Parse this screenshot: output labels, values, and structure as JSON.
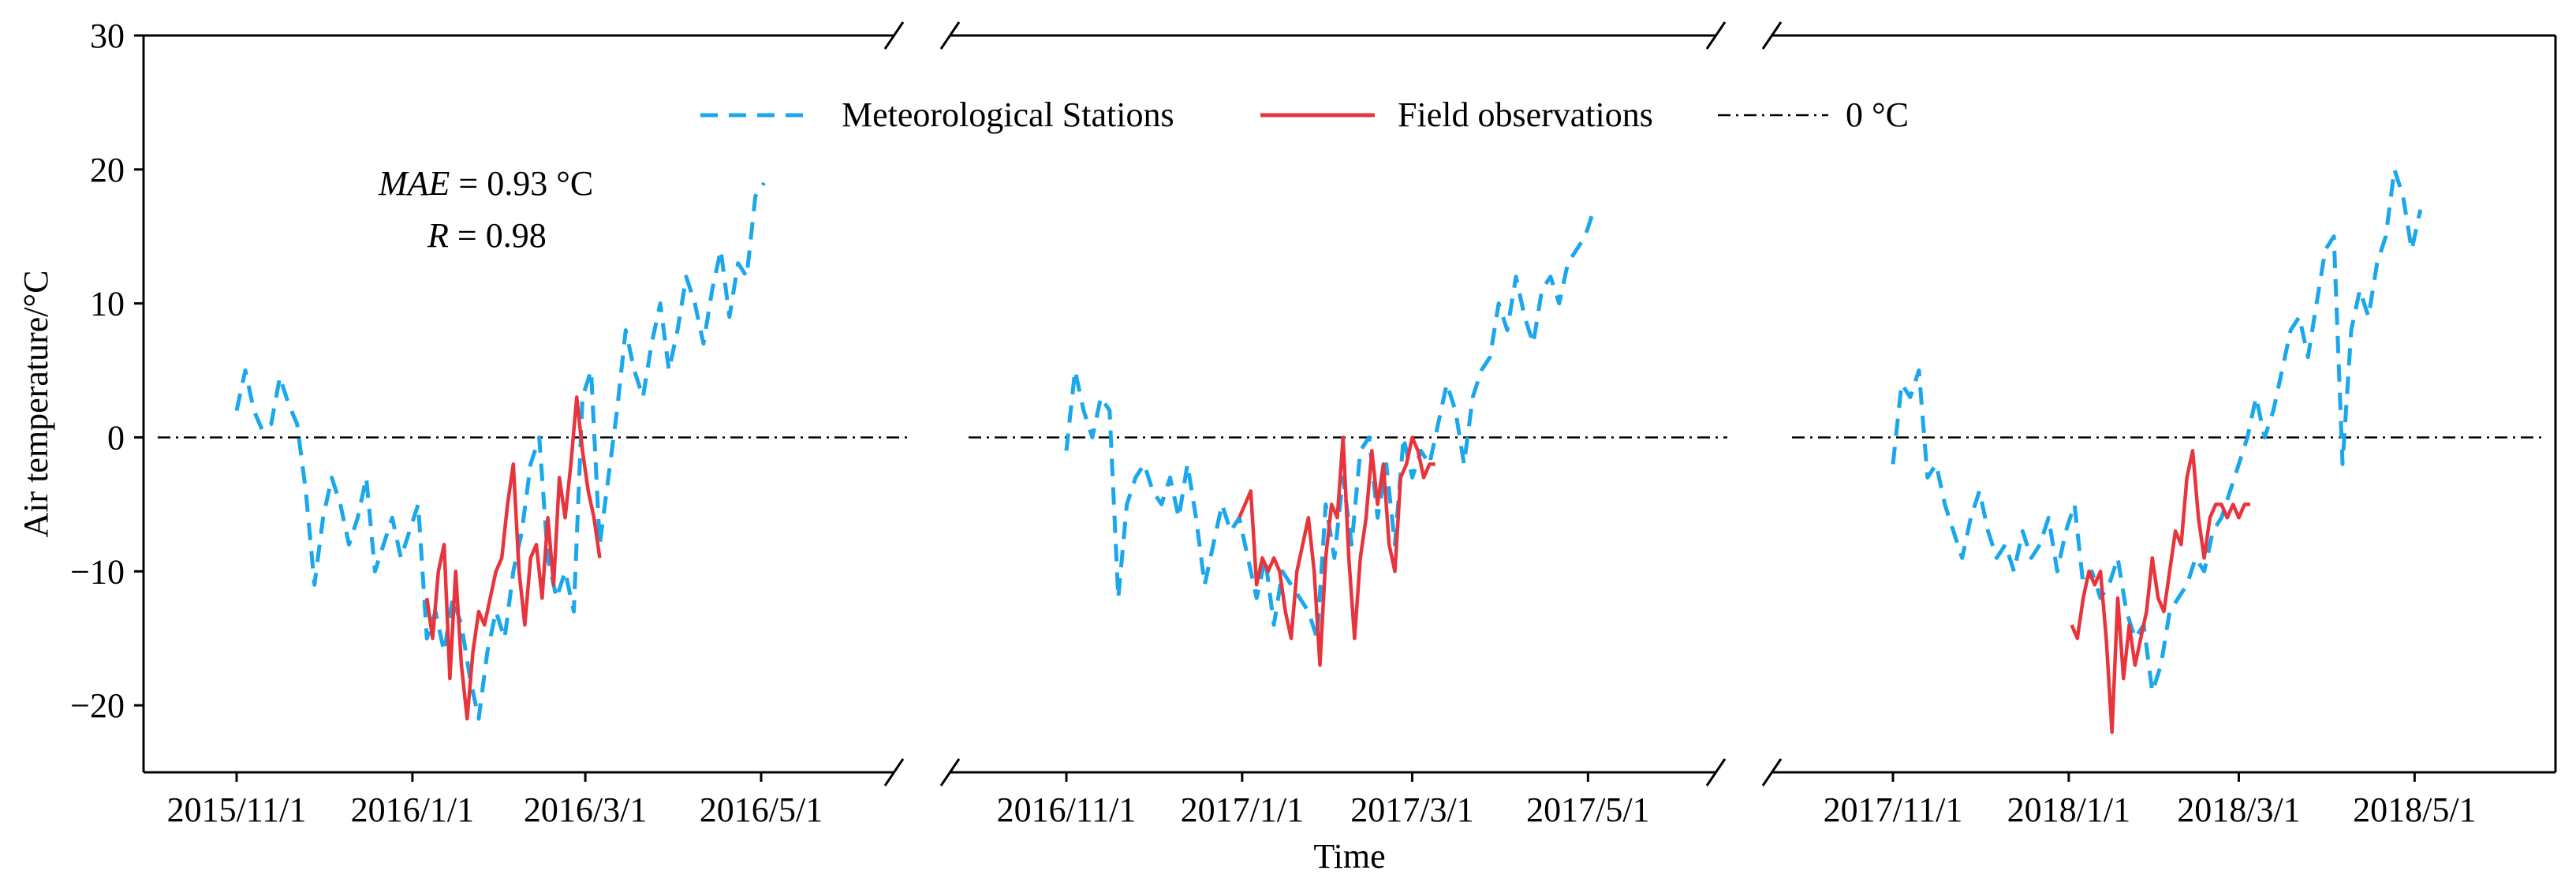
{
  "chart_data": {
    "type": "line",
    "ylabel": "Air temperature/°C",
    "xlabel": "Time",
    "ylim": [
      -25,
      30
    ],
    "yticks": [
      -20,
      -10,
      0,
      10,
      20,
      30
    ],
    "ytick_labels": [
      "−20",
      "−10",
      "0",
      "10",
      "20",
      "30"
    ],
    "legend": {
      "position": "top-center",
      "entries": [
        "Meteorological Stations",
        "Field observations",
        "0 °C"
      ]
    },
    "colors": {
      "met": "#1aa7ec",
      "field": "#e8343c",
      "zero": "#000000"
    },
    "annotation": {
      "mae_label": "MAE",
      "mae_value": " = 0.93 °C",
      "r_label": "R",
      "r_value": " = 0.98"
    },
    "panels": [
      {
        "xticks": [
          0,
          61,
          121,
          182
        ],
        "xtick_labels": [
          "2015/11/1",
          "2016/1/1",
          "2016/3/1",
          "2016/5/1"
        ],
        "xlim": [
          -31,
          230
        ],
        "series": [
          {
            "name": "Meteorological Stations",
            "x": [
              0,
              3,
              6,
              9,
              12,
              15,
              18,
              21,
              24,
              27,
              30,
              33,
              36,
              39,
              42,
              45,
              48,
              51,
              54,
              57,
              60,
              63,
              66,
              69,
              72,
              75,
              78,
              81,
              84,
              87,
              90,
              93,
              96,
              99,
              102,
              105,
              108,
              111,
              114,
              117,
              120,
              123,
              126,
              129,
              132,
              135,
              138,
              141,
              144,
              147,
              150,
              153,
              156,
              159,
              162,
              165,
              168,
              171,
              174,
              177,
              180,
              183
            ],
            "y": [
              2,
              5,
              2,
              0.5,
              1,
              4.5,
              2.5,
              1,
              -4,
              -11,
              -6,
              -3,
              -5,
              -8,
              -6,
              -3,
              -10,
              -8,
              -6,
              -9,
              -7,
              -5,
              -15,
              -13,
              -16,
              -12,
              -14,
              -18,
              -21,
              -16,
              -13,
              -15,
              -10,
              -7,
              -2,
              0,
              -9,
              -12,
              -10,
              -13,
              3,
              5,
              -8,
              -3,
              2,
              8,
              5,
              3,
              7,
              10,
              5,
              8,
              12,
              10,
              7,
              11,
              14,
              9,
              13,
              12,
              18,
              19
            ]
          },
          {
            "name": "Field observations",
            "x": [
              66,
              68,
              70,
              72,
              74,
              76,
              78,
              80,
              82,
              84,
              86,
              88,
              90,
              92,
              94,
              96,
              98,
              100,
              102,
              104,
              106,
              108,
              110,
              112,
              114,
              116,
              118,
              120,
              122,
              124,
              126
            ],
            "y": [
              -12,
              -15,
              -10,
              -8,
              -18,
              -10,
              -17,
              -21,
              -16,
              -13,
              -14,
              -12,
              -10,
              -9,
              -5,
              -2,
              -10,
              -14,
              -9,
              -8,
              -12,
              -6,
              -11,
              -3,
              -6,
              -2,
              3,
              -1,
              -4,
              -6,
              -9
            ]
          }
        ]
      },
      {
        "xticks": [
          0,
          61,
          120,
          181
        ],
        "xtick_labels": [
          "2016/11/1",
          "2017/1/1",
          "2017/3/1",
          "2017/5/1"
        ],
        "xlim": [
          -31,
          230
        ],
        "series": [
          {
            "name": "Meteorological Stations",
            "x": [
              0,
              3,
              6,
              9,
              12,
              15,
              18,
              21,
              24,
              27,
              30,
              33,
              36,
              39,
              42,
              45,
              48,
              51,
              54,
              57,
              60,
              63,
              66,
              69,
              72,
              75,
              78,
              81,
              84,
              87,
              90,
              93,
              96,
              99,
              102,
              105,
              108,
              111,
              114,
              117,
              120,
              123,
              126,
              129,
              132,
              135,
              138,
              141,
              144,
              147,
              150,
              153,
              156,
              159,
              162,
              165,
              168,
              171,
              174,
              177,
              180,
              183
            ],
            "y": [
              -1,
              5,
              2,
              0,
              3,
              2,
              -12,
              -5,
              -3,
              -2,
              -4,
              -5,
              -3,
              -6,
              -2,
              -6,
              -11,
              -8,
              -5,
              -7,
              -6,
              -9,
              -12,
              -9,
              -14,
              -10,
              -11,
              -12,
              -13,
              -15,
              -5,
              -9,
              -3,
              -8,
              -1,
              0,
              -6,
              -2,
              -8,
              0,
              -3,
              -1,
              -2,
              1,
              4,
              2,
              -2,
              3,
              5,
              6,
              10,
              8,
              12,
              9,
              7,
              11,
              12,
              10,
              13,
              14,
              15,
              17
            ]
          },
          {
            "name": "Field observations",
            "x": [
              60,
              62,
              64,
              66,
              68,
              70,
              72,
              74,
              76,
              78,
              80,
              82,
              84,
              86,
              88,
              90,
              92,
              94,
              96,
              98,
              100,
              102,
              104,
              106,
              108,
              110,
              112,
              114,
              116,
              118,
              120,
              122,
              124,
              126,
              128
            ],
            "y": [
              -6,
              -5,
              -4,
              -11,
              -9,
              -10,
              -9,
              -10,
              -13,
              -15,
              -10,
              -8,
              -6,
              -10,
              -17,
              -9,
              -5,
              -6,
              0,
              -9,
              -15,
              -9,
              -6,
              -1,
              -5,
              -2,
              -8,
              -10,
              -3,
              -2,
              0,
              -1,
              -3,
              -2,
              -2
            ]
          }
        ]
      },
      {
        "xticks": [
          0,
          61,
          120,
          181
        ],
        "xtick_labels": [
          "2017/11/1",
          "2018/1/1",
          "2018/3/1",
          "2018/5/1"
        ],
        "xlim": [
          -31,
          230
        ],
        "series": [
          {
            "name": "Meteorological Stations",
            "x": [
              0,
              3,
              6,
              9,
              12,
              15,
              18,
              21,
              24,
              27,
              30,
              33,
              36,
              39,
              42,
              45,
              48,
              51,
              54,
              57,
              60,
              63,
              66,
              69,
              72,
              75,
              78,
              81,
              84,
              87,
              90,
              93,
              96,
              99,
              102,
              105,
              108,
              111,
              114,
              117,
              120,
              123,
              126,
              129,
              132,
              135,
              138,
              141,
              144,
              147,
              150,
              153,
              156,
              159,
              162,
              165,
              168,
              171,
              174,
              177,
              180,
              183
            ],
            "y": [
              -2,
              4,
              3,
              5,
              -3,
              -2,
              -5,
              -7,
              -9,
              -6,
              -4,
              -7,
              -9,
              -8,
              -10,
              -7,
              -9,
              -8,
              -6,
              -10,
              -7,
              -5,
              -11,
              -10,
              -12,
              -11,
              -9,
              -13,
              -15,
              -14,
              -19,
              -17,
              -13,
              -12,
              -11,
              -9,
              -10,
              -7,
              -6,
              -4,
              -2,
              0,
              3,
              0,
              2,
              5,
              8,
              9,
              6,
              10,
              14,
              15,
              -2,
              8,
              11,
              9,
              13,
              15,
              20,
              18,
              14,
              17
            ]
          },
          {
            "name": "Field observations",
            "x": [
              62,
              64,
              66,
              68,
              70,
              72,
              74,
              76,
              78,
              80,
              82,
              84,
              86,
              88,
              90,
              92,
              94,
              96,
              98,
              100,
              102,
              104,
              106,
              108,
              110,
              112,
              114,
              116,
              118,
              120,
              122,
              124
            ],
            "y": [
              -14,
              -15,
              -12,
              -10,
              -11,
              -10,
              -15,
              -22,
              -12,
              -18,
              -14,
              -17,
              -15,
              -13,
              -9,
              -12,
              -13,
              -10,
              -7,
              -8,
              -3,
              -1,
              -6,
              -9,
              -6,
              -5,
              -5,
              -6,
              -5,
              -6,
              -5,
              -5
            ]
          }
        ]
      }
    ]
  }
}
